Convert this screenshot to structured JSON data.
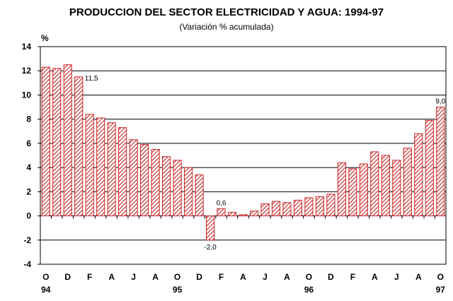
{
  "chart_data": {
    "type": "bar",
    "title": "PRODUCCION DEL SECTOR ELECTRICIDAD Y AGUA: 1994-97",
    "subtitle": "(Variación % acumulada)",
    "ylabel": "%",
    "ylim": [
      -4,
      14
    ],
    "yticks": [
      14,
      12,
      10,
      8,
      6,
      4,
      2,
      0,
      -2,
      -4
    ],
    "grid": true,
    "bar_fill": "#cc2222",
    "values": [
      12.3,
      12.2,
      12.5,
      11.5,
      8.4,
      8.1,
      7.7,
      7.3,
      6.3,
      5.9,
      5.5,
      4.9,
      4.6,
      4.0,
      3.4,
      -2.0,
      0.6,
      0.3,
      0.1,
      0.4,
      1.0,
      1.2,
      1.1,
      1.3,
      1.5,
      1.6,
      1.8,
      4.4,
      3.9,
      4.3,
      5.3,
      5.0,
      4.6,
      5.6,
      6.8,
      7.9,
      9.0
    ],
    "month_labels": [
      "O",
      "",
      "D",
      "",
      "F",
      "",
      "A",
      "",
      "J",
      "",
      "A",
      "",
      "O",
      "",
      "D",
      "",
      "F",
      "",
      "A",
      "",
      "J",
      "",
      "A",
      "",
      "O",
      "",
      "D",
      "",
      "F",
      "",
      "A",
      "",
      "J",
      "",
      "A",
      "",
      "O"
    ],
    "year_labels": [
      {
        "index": 0,
        "text": "94"
      },
      {
        "index": 12,
        "text": "95"
      },
      {
        "index": 24,
        "text": "96"
      },
      {
        "index": 36,
        "text": "97"
      }
    ],
    "data_labels": [
      {
        "index": 3,
        "text": "11,5",
        "position": "right"
      },
      {
        "index": 15,
        "text": "-2,0",
        "position": "below"
      },
      {
        "index": 16,
        "text": "0,6",
        "position": "above"
      },
      {
        "index": 36,
        "text": "9,0",
        "position": "above"
      }
    ]
  }
}
